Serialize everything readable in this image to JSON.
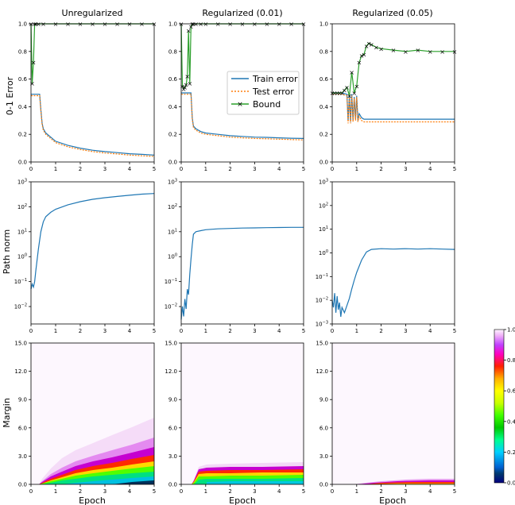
{
  "column_titles": [
    "Unregularized",
    "Regularized (0.01)",
    "Regularized (0.05)"
  ],
  "row_labels": [
    "0-1 Error",
    "Path norm",
    "Margin"
  ],
  "xlabel": "Epoch",
  "legend": {
    "items": [
      "Train error",
      "Test error",
      "Bound"
    ]
  },
  "colorbar": {
    "ticks": [
      "0.0",
      "0.2",
      "0.4",
      "0.6",
      "0.8",
      "1.0"
    ],
    "cmap": "gist_ncar-like"
  },
  "chart_data": [
    {
      "type": "line",
      "panel": "Unregularized / 0-1 Error",
      "xlim": [
        0,
        5
      ],
      "ylim": [
        0,
        1.0
      ],
      "xticks": [
        "0",
        "1",
        "2",
        "3",
        "4",
        "5"
      ],
      "yticks": [
        "0.0",
        "0.2",
        "0.4",
        "0.6",
        "0.8",
        "1.0"
      ],
      "series": [
        {
          "name": "Train error",
          "color": "#1f77b4",
          "x": [
            0,
            0.05,
            0.1,
            0.2,
            0.3,
            0.35,
            0.4,
            0.45,
            0.5,
            0.6,
            0.8,
            1.0,
            1.5,
            2.0,
            2.5,
            3.0,
            3.5,
            4.0,
            4.5,
            5.0
          ],
          "y": [
            0.49,
            0.49,
            0.49,
            0.49,
            0.49,
            0.49,
            0.38,
            0.28,
            0.24,
            0.21,
            0.18,
            0.15,
            0.12,
            0.1,
            0.085,
            0.075,
            0.068,
            0.06,
            0.055,
            0.05
          ]
        },
        {
          "name": "Test error",
          "color": "#ff7f0e",
          "x": [
            0,
            0.05,
            0.1,
            0.2,
            0.3,
            0.35,
            0.4,
            0.45,
            0.5,
            0.6,
            0.8,
            1.0,
            1.5,
            2.0,
            2.5,
            3.0,
            3.5,
            4.0,
            4.5,
            5.0
          ],
          "y": [
            0.48,
            0.48,
            0.48,
            0.48,
            0.48,
            0.48,
            0.37,
            0.27,
            0.23,
            0.2,
            0.17,
            0.14,
            0.11,
            0.09,
            0.075,
            0.065,
            0.058,
            0.05,
            0.045,
            0.04
          ]
        },
        {
          "name": "Bound",
          "color": "#2ca02c",
          "x": [
            0,
            0.05,
            0.1,
            0.15,
            0.2,
            0.3,
            0.5,
            1.0,
            1.5,
            2.0,
            2.5,
            3.0,
            3.5,
            4.0,
            4.5,
            5.0
          ],
          "y": [
            1.0,
            0.57,
            0.72,
            1.0,
            1.0,
            1.0,
            1.0,
            1.0,
            1.0,
            1.0,
            1.0,
            1.0,
            1.0,
            1.0,
            1.0,
            1.0
          ]
        }
      ]
    },
    {
      "type": "line",
      "panel": "Regularized (0.01) / 0-1 Error",
      "xlim": [
        0,
        5
      ],
      "ylim": [
        0,
        1.0
      ],
      "xticks": [
        "0",
        "1",
        "2",
        "3",
        "4",
        "5"
      ],
      "yticks": [
        "0.0",
        "0.2",
        "0.4",
        "0.6",
        "0.8",
        "1.0"
      ],
      "series": [
        {
          "name": "Train error",
          "color": "#1f77b4",
          "x": [
            0,
            0.1,
            0.2,
            0.3,
            0.4,
            0.45,
            0.5,
            0.6,
            0.8,
            1.0,
            1.5,
            2.0,
            2.5,
            3.0,
            3.5,
            4.0,
            4.5,
            5.0
          ],
          "y": [
            0.5,
            0.5,
            0.5,
            0.5,
            0.5,
            0.32,
            0.26,
            0.24,
            0.22,
            0.21,
            0.2,
            0.19,
            0.185,
            0.18,
            0.178,
            0.175,
            0.172,
            0.17
          ]
        },
        {
          "name": "Test error",
          "color": "#ff7f0e",
          "x": [
            0,
            0.1,
            0.2,
            0.3,
            0.4,
            0.45,
            0.5,
            0.6,
            0.8,
            1.0,
            1.5,
            2.0,
            2.5,
            3.0,
            3.5,
            4.0,
            4.5,
            5.0
          ],
          "y": [
            0.49,
            0.49,
            0.49,
            0.49,
            0.49,
            0.31,
            0.25,
            0.23,
            0.21,
            0.2,
            0.19,
            0.18,
            0.175,
            0.17,
            0.168,
            0.165,
            0.162,
            0.16
          ]
        },
        {
          "name": "Bound",
          "color": "#2ca02c",
          "x": [
            0,
            0.05,
            0.1,
            0.15,
            0.2,
            0.25,
            0.3,
            0.35,
            0.4,
            0.45,
            0.5,
            0.6,
            0.8,
            1.0,
            1.5,
            2.0,
            2.5,
            3.0,
            3.5,
            4.0,
            4.5,
            5.0
          ],
          "y": [
            1.0,
            0.55,
            0.53,
            0.54,
            0.56,
            0.62,
            0.95,
            0.57,
            0.98,
            1.0,
            1.0,
            1.0,
            1.0,
            1.0,
            1.0,
            1.0,
            1.0,
            1.0,
            1.0,
            1.0,
            1.0,
            1.0
          ]
        }
      ]
    },
    {
      "type": "line",
      "panel": "Regularized (0.05) / 0-1 Error",
      "xlim": [
        0,
        5
      ],
      "ylim": [
        0,
        1.0
      ],
      "xticks": [
        "0",
        "1",
        "2",
        "3",
        "4",
        "5"
      ],
      "yticks": [
        "0.0",
        "0.2",
        "0.4",
        "0.6",
        "0.8",
        "1.0"
      ],
      "series": [
        {
          "name": "Train error",
          "color": "#1f77b4",
          "x": [
            0,
            0.2,
            0.4,
            0.6,
            0.65,
            0.7,
            0.75,
            0.8,
            0.85,
            0.9,
            0.95,
            1.0,
            1.05,
            1.1,
            1.2,
            1.3,
            1.5,
            2.0,
            2.5,
            3.0,
            3.5,
            4.0,
            4.5,
            5.0
          ],
          "y": [
            0.5,
            0.5,
            0.5,
            0.49,
            0.3,
            0.48,
            0.29,
            0.49,
            0.3,
            0.47,
            0.31,
            0.48,
            0.3,
            0.35,
            0.32,
            0.31,
            0.31,
            0.31,
            0.31,
            0.31,
            0.31,
            0.31,
            0.31,
            0.31
          ]
        },
        {
          "name": "Test error",
          "color": "#ff7f0e",
          "x": [
            0,
            0.2,
            0.4,
            0.6,
            0.65,
            0.7,
            0.75,
            0.8,
            0.85,
            0.9,
            0.95,
            1.0,
            1.05,
            1.1,
            1.2,
            1.3,
            1.5,
            2.0,
            2.5,
            3.0,
            3.5,
            4.0,
            4.5,
            5.0
          ],
          "y": [
            0.49,
            0.49,
            0.49,
            0.48,
            0.28,
            0.47,
            0.28,
            0.48,
            0.29,
            0.46,
            0.3,
            0.47,
            0.29,
            0.33,
            0.3,
            0.29,
            0.29,
            0.29,
            0.29,
            0.29,
            0.29,
            0.29,
            0.29,
            0.29
          ]
        },
        {
          "name": "Bound",
          "color": "#2ca02c",
          "x": [
            0,
            0.1,
            0.2,
            0.3,
            0.4,
            0.5,
            0.6,
            0.7,
            0.8,
            0.9,
            1.0,
            1.1,
            1.2,
            1.3,
            1.4,
            1.5,
            1.6,
            1.8,
            2.0,
            2.5,
            3.0,
            3.5,
            4.0,
            4.5,
            5.0
          ],
          "y": [
            0.5,
            0.5,
            0.5,
            0.5,
            0.5,
            0.52,
            0.54,
            0.48,
            0.65,
            0.5,
            0.55,
            0.72,
            0.77,
            0.78,
            0.84,
            0.86,
            0.85,
            0.83,
            0.82,
            0.81,
            0.8,
            0.81,
            0.8,
            0.8,
            0.8
          ]
        }
      ]
    },
    {
      "type": "line",
      "panel": "Unregularized / Path norm",
      "yscale": "log",
      "xlim": [
        0,
        5
      ],
      "ylim": [
        0.002,
        1000
      ],
      "xticks": [
        "0",
        "1",
        "2",
        "3",
        "4",
        "5"
      ],
      "series": [
        {
          "name": "",
          "color": "#1f77b4",
          "x": [
            0,
            0.05,
            0.1,
            0.15,
            0.2,
            0.3,
            0.4,
            0.5,
            0.6,
            0.8,
            1.0,
            1.5,
            2.0,
            2.5,
            3.0,
            3.5,
            4.0,
            4.5,
            5.0
          ],
          "y": [
            0.05,
            0.08,
            0.06,
            0.1,
            0.3,
            2,
            10,
            25,
            40,
            60,
            80,
            120,
            160,
            200,
            230,
            260,
            290,
            320,
            340
          ]
        }
      ]
    },
    {
      "type": "line",
      "panel": "Regularized (0.01) / Path norm",
      "yscale": "log",
      "xlim": [
        0,
        5
      ],
      "ylim": [
        0.002,
        1000
      ],
      "xticks": [
        "0",
        "1",
        "2",
        "3",
        "4",
        "5"
      ],
      "series": [
        {
          "name": "",
          "color": "#1f77b4",
          "x": [
            0,
            0.05,
            0.1,
            0.15,
            0.2,
            0.25,
            0.3,
            0.35,
            0.4,
            0.45,
            0.5,
            0.6,
            0.8,
            1.0,
            1.5,
            2.0,
            2.5,
            3.0,
            3.5,
            4.0,
            4.5,
            5.0
          ],
          "y": [
            0.003,
            0.01,
            0.004,
            0.02,
            0.008,
            0.05,
            0.03,
            0.2,
            0.8,
            3,
            8,
            10,
            11,
            12,
            13,
            13.5,
            14,
            14.2,
            14.5,
            14.8,
            15,
            15
          ]
        }
      ]
    },
    {
      "type": "line",
      "panel": "Regularized (0.05) / Path norm",
      "yscale": "log",
      "xlim": [
        0,
        5
      ],
      "ylim": [
        0.001,
        1000
      ],
      "xticks": [
        "0",
        "1",
        "2",
        "3",
        "4",
        "5"
      ],
      "series": [
        {
          "name": "",
          "color": "#1f77b4",
          "x": [
            0,
            0.05,
            0.1,
            0.15,
            0.2,
            0.25,
            0.3,
            0.35,
            0.4,
            0.5,
            0.6,
            0.7,
            0.8,
            0.9,
            1.0,
            1.2,
            1.4,
            1.6,
            2.0,
            2.5,
            3.0,
            3.5,
            4.0,
            4.5,
            5.0
          ],
          "y": [
            0.01,
            0.005,
            0.02,
            0.003,
            0.015,
            0.004,
            0.008,
            0.002,
            0.005,
            0.003,
            0.006,
            0.012,
            0.03,
            0.07,
            0.15,
            0.5,
            1.1,
            1.4,
            1.5,
            1.45,
            1.5,
            1.45,
            1.5,
            1.45,
            1.4
          ]
        }
      ]
    },
    {
      "type": "heatmap",
      "panel": "Unregularized / Margin",
      "xlim": [
        0,
        5
      ],
      "ylim": [
        0,
        15.0
      ],
      "xticks": [
        "0",
        "1",
        "2",
        "3",
        "4",
        "5"
      ],
      "yticks": [
        "0.0",
        "3.0",
        "6.0",
        "9.0",
        "12.0",
        "15.0"
      ],
      "description_values": {
        "x": [
          0.3,
          0.5,
          1,
          2,
          3,
          4,
          5
        ],
        "upper_margin": [
          0.1,
          0.8,
          2.0,
          3.5,
          4.6,
          5.3,
          6.0
        ],
        "faint_tail": [
          0.2,
          1.5,
          3.0,
          5.0,
          6.5,
          7.5,
          8.5
        ]
      }
    },
    {
      "type": "heatmap",
      "panel": "Regularized (0.01) / Margin",
      "xlim": [
        0,
        5
      ],
      "ylim": [
        0,
        15.0
      ],
      "xticks": [
        "0",
        "1",
        "2",
        "3",
        "4",
        "5"
      ],
      "yticks": [
        "0.0",
        "3.0",
        "6.0",
        "9.0",
        "12.0",
        "15.0"
      ],
      "description_values": {
        "x": [
          0.3,
          0.5,
          1,
          2,
          3,
          4,
          5
        ],
        "upper_margin": [
          0.1,
          0.5,
          1.6,
          1.9,
          2.0,
          2.0,
          2.1
        ],
        "faint_tail": [
          0.1,
          0.6,
          1.8,
          2.1,
          2.2,
          2.2,
          2.3
        ]
      }
    },
    {
      "type": "heatmap",
      "panel": "Regularized (0.05) / Margin",
      "xlim": [
        0,
        5
      ],
      "ylim": [
        0,
        15.0
      ],
      "xticks": [
        "0",
        "1",
        "2",
        "3",
        "4",
        "5"
      ],
      "yticks": [
        "0.0",
        "3.0",
        "6.0",
        "9.0",
        "12.0",
        "15.0"
      ],
      "description_values": {
        "x": [
          0.8,
          1.2,
          1.5,
          2,
          3,
          4,
          5
        ],
        "upper_margin": [
          0.0,
          0.1,
          0.3,
          0.4,
          0.5,
          0.5,
          0.5
        ],
        "faint_tail": [
          0.0,
          0.15,
          0.35,
          0.45,
          0.55,
          0.55,
          0.6
        ]
      }
    }
  ]
}
